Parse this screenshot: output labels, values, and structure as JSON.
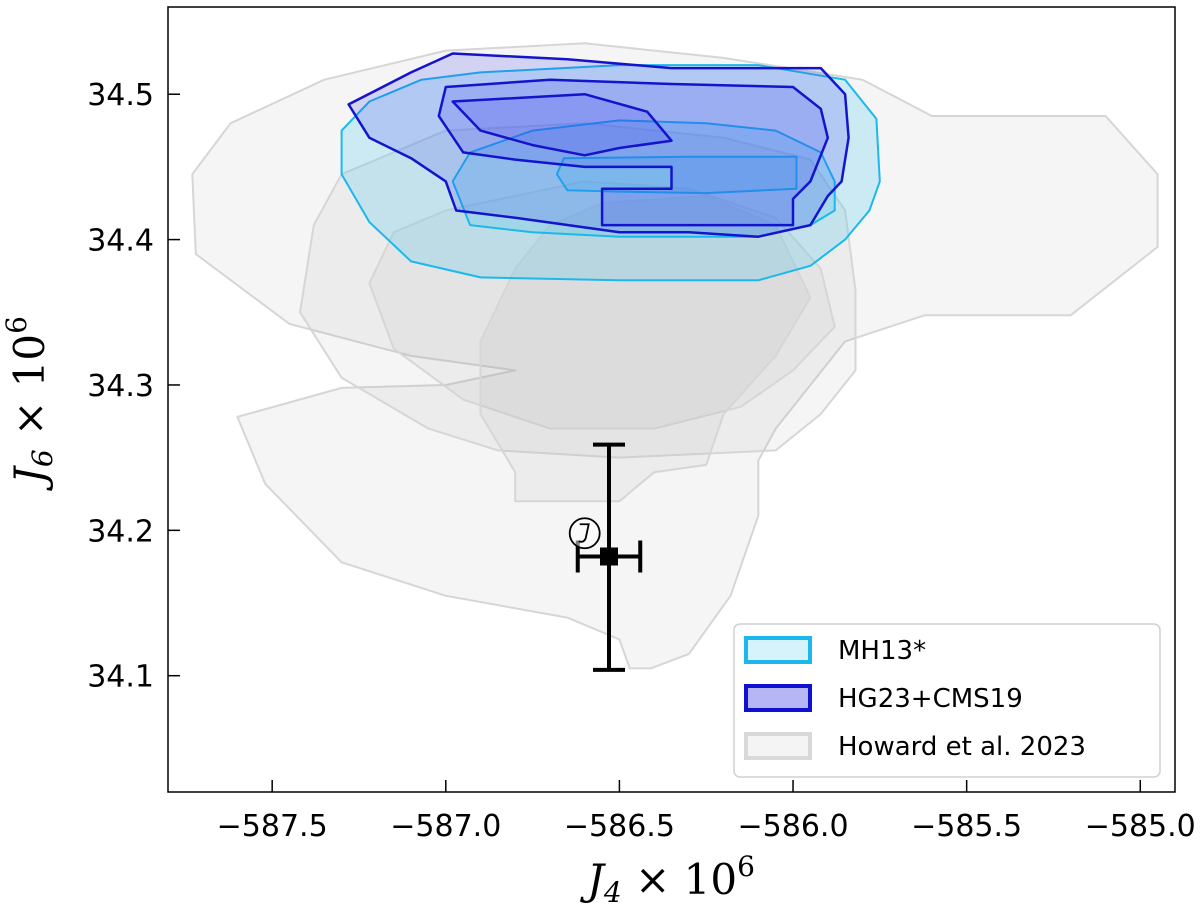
{
  "chart_data": {
    "type": "contour",
    "xlabel": {
      "main": "J",
      "sub": "4",
      "rest": " × 10",
      "sup": "6"
    },
    "ylabel": {
      "main": "J",
      "sub": "6",
      "rest": " × 10",
      "sup": "6"
    },
    "xlim": [
      -587.8,
      -584.9
    ],
    "ylim": [
      34.02,
      34.56
    ],
    "x_ticks": [
      -587.5,
      -587.0,
      -586.5,
      -586.0,
      -585.5,
      -585.0
    ],
    "x_tick_labels": [
      "−587.5",
      "−587.0",
      "−586.5",
      "−586.0",
      "−585.5",
      "−585.0"
    ],
    "y_ticks": [
      34.1,
      34.2,
      34.3,
      34.4,
      34.5
    ],
    "y_tick_labels": [
      "34.1",
      "34.2",
      "34.3",
      "34.4",
      "34.5"
    ],
    "legend": {
      "placement": "lower-right",
      "entries": [
        {
          "label": "MH13*",
          "edge": "#1cb8ec",
          "fill": "#d6f3fc"
        },
        {
          "label": "HG23+CMS19",
          "edge": "#1010d0",
          "fill": "#b6b6f4"
        },
        {
          "label": "Howard et al. 2023",
          "edge": "#d9d9d9",
          "fill": "#f4f4f4"
        }
      ]
    },
    "series": [
      {
        "name": "Howard et al. 2023",
        "style": {
          "edge": "#d6d6d6",
          "fill": "#9a9a9a",
          "fill_opacity": 0.1,
          "stroke_width": 2
        },
        "contours": [
          [
            [
              -587.35,
              34.51
            ],
            [
              -587.0,
              34.53
            ],
            [
              -586.6,
              34.535
            ],
            [
              -586.2,
              34.525
            ],
            [
              -585.8,
              34.51
            ],
            [
              -585.6,
              34.485
            ],
            [
              -585.1,
              34.485
            ],
            [
              -584.95,
              34.445
            ],
            [
              -584.95,
              34.395
            ],
            [
              -585.2,
              34.348
            ],
            [
              -585.62,
              34.348
            ],
            [
              -585.85,
              34.33
            ],
            [
              -585.95,
              34.3
            ],
            [
              -586.05,
              34.27
            ],
            [
              -586.1,
              34.248
            ],
            [
              -586.1,
              34.21
            ],
            [
              -586.18,
              34.155
            ],
            [
              -586.3,
              34.115
            ],
            [
              -586.41,
              34.105
            ],
            [
              -586.47,
              34.105
            ],
            [
              -586.5,
              34.125
            ],
            [
              -586.65,
              34.14
            ],
            [
              -587.0,
              34.155
            ],
            [
              -587.3,
              34.178
            ],
            [
              -587.52,
              34.232
            ],
            [
              -587.6,
              34.278
            ],
            [
              -587.3,
              34.298
            ],
            [
              -587.0,
              34.3
            ],
            [
              -586.8,
              34.31
            ],
            [
              -587.1,
              34.32
            ],
            [
              -587.45,
              34.342
            ],
            [
              -587.72,
              34.39
            ],
            [
              -587.73,
              34.445
            ],
            [
              -587.62,
              34.48
            ]
          ],
          [
            [
              -587.3,
              34.445
            ],
            [
              -587.0,
              34.475
            ],
            [
              -586.6,
              34.48
            ],
            [
              -586.2,
              34.47
            ],
            [
              -585.95,
              34.455
            ],
            [
              -585.85,
              34.42
            ],
            [
              -585.82,
              34.365
            ],
            [
              -585.82,
              34.31
            ],
            [
              -585.92,
              34.28
            ],
            [
              -586.05,
              34.255
            ],
            [
              -586.5,
              34.25
            ],
            [
              -586.85,
              34.255
            ],
            [
              -587.05,
              34.27
            ],
            [
              -587.3,
              34.305
            ],
            [
              -587.42,
              34.35
            ],
            [
              -587.38,
              34.41
            ]
          ],
          [
            [
              -587.0,
              34.42
            ],
            [
              -586.6,
              34.44
            ],
            [
              -586.3,
              34.435
            ],
            [
              -586.05,
              34.415
            ],
            [
              -585.92,
              34.38
            ],
            [
              -585.88,
              34.34
            ],
            [
              -586.0,
              34.31
            ],
            [
              -586.15,
              34.285
            ],
            [
              -586.4,
              34.27
            ],
            [
              -586.7,
              34.27
            ],
            [
              -586.95,
              34.29
            ],
            [
              -587.15,
              34.325
            ],
            [
              -587.22,
              34.37
            ],
            [
              -587.15,
              34.405
            ]
          ],
          [
            [
              -586.55,
              34.425
            ],
            [
              -586.25,
              34.43
            ],
            [
              -586.05,
              34.41
            ],
            [
              -585.95,
              34.36
            ],
            [
              -586.05,
              34.32
            ],
            [
              -586.2,
              34.28
            ],
            [
              -586.25,
              34.245
            ],
            [
              -586.4,
              34.24
            ],
            [
              -586.5,
              34.22
            ],
            [
              -586.8,
              34.22
            ],
            [
              -586.8,
              34.24
            ],
            [
              -586.9,
              34.28
            ],
            [
              -586.9,
              34.33
            ],
            [
              -586.8,
              34.38
            ],
            [
              -586.7,
              34.41
            ]
          ]
        ]
      },
      {
        "name": "MH13*",
        "style": {
          "edge": "#1cb8ec",
          "fill": "#28c0f2",
          "fill_opacity": 0.2,
          "stroke_width": 2
        },
        "contours": [
          [
            [
              -587.07,
              34.51
            ],
            [
              -586.9,
              34.515
            ],
            [
              -586.5,
              34.52
            ],
            [
              -586.1,
              34.52
            ],
            [
              -585.85,
              34.51
            ],
            [
              -585.76,
              34.483
            ],
            [
              -585.75,
              34.44
            ],
            [
              -585.78,
              34.42
            ],
            [
              -585.85,
              34.4
            ],
            [
              -585.95,
              34.382
            ],
            [
              -586.1,
              34.372
            ],
            [
              -586.5,
              34.372
            ],
            [
              -586.9,
              34.374
            ],
            [
              -587.1,
              34.385
            ],
            [
              -587.22,
              34.412
            ],
            [
              -587.3,
              34.445
            ],
            [
              -587.3,
              34.475
            ],
            [
              -587.22,
              34.495
            ]
          ],
          [
            [
              -586.75,
              34.475
            ],
            [
              -586.5,
              34.482
            ],
            [
              -586.25,
              34.48
            ],
            [
              -586.05,
              34.475
            ],
            [
              -585.92,
              34.46
            ],
            [
              -585.88,
              34.44
            ],
            [
              -585.88,
              34.42
            ],
            [
              -585.95,
              34.41
            ],
            [
              -586.1,
              34.402
            ],
            [
              -586.5,
              34.402
            ],
            [
              -586.75,
              34.405
            ],
            [
              -586.93,
              34.41
            ],
            [
              -586.98,
              34.44
            ],
            [
              -586.93,
              34.46
            ]
          ],
          [
            [
              -586.66,
              34.456
            ],
            [
              -586.3,
              34.457
            ],
            [
              -585.99,
              34.457
            ],
            [
              -585.99,
              34.435
            ],
            [
              -586.25,
              34.432
            ],
            [
              -586.5,
              34.433
            ],
            [
              -586.65,
              34.434
            ],
            [
              -586.68,
              34.445
            ]
          ]
        ]
      },
      {
        "name": "HG23+CMS19",
        "style": {
          "edge": "#1414cc",
          "fill": "#3a3aee",
          "fill_opacity": 0.18,
          "stroke_width": 2.5
        },
        "contours": [
          [
            [
              -587.1,
              34.515
            ],
            [
              -586.98,
              34.528
            ],
            [
              -586.65,
              34.524
            ],
            [
              -586.35,
              34.518
            ],
            [
              -586.1,
              34.518
            ],
            [
              -585.92,
              34.518
            ],
            [
              -585.85,
              34.5
            ],
            [
              -585.84,
              34.47
            ],
            [
              -585.86,
              34.44
            ],
            [
              -585.9,
              34.43
            ],
            [
              -585.95,
              34.41
            ],
            [
              -586.1,
              34.402
            ],
            [
              -586.3,
              34.405
            ],
            [
              -586.5,
              34.405
            ],
            [
              -586.8,
              34.415
            ],
            [
              -586.97,
              34.42
            ],
            [
              -587.0,
              34.44
            ],
            [
              -587.1,
              34.456
            ],
            [
              -587.22,
              34.47
            ],
            [
              -587.28,
              34.493
            ]
          ],
          [
            [
              -587.0,
              34.505
            ],
            [
              -586.7,
              34.51
            ],
            [
              -586.35,
              34.507
            ],
            [
              -586.0,
              34.505
            ],
            [
              -585.92,
              34.49
            ],
            [
              -585.9,
              34.47
            ],
            [
              -585.95,
              34.44
            ],
            [
              -586.0,
              34.428
            ],
            [
              -586.0,
              34.41
            ],
            [
              -586.25,
              34.41
            ],
            [
              -586.55,
              34.41
            ],
            [
              -586.55,
              34.435
            ],
            [
              -586.35,
              34.435
            ],
            [
              -586.35,
              34.45
            ],
            [
              -586.6,
              34.45
            ],
            [
              -586.8,
              34.455
            ],
            [
              -586.95,
              34.46
            ],
            [
              -587.02,
              34.485
            ]
          ],
          [
            [
              -586.98,
              34.495
            ],
            [
              -586.6,
              34.5
            ],
            [
              -586.42,
              34.488
            ],
            [
              -586.35,
              34.468
            ],
            [
              -586.5,
              34.463
            ],
            [
              -586.6,
              34.458
            ],
            [
              -586.75,
              34.465
            ],
            [
              -586.9,
              34.475
            ]
          ]
        ]
      }
    ],
    "point": {
      "x": -586.53,
      "y": 34.182,
      "x_err": [
        0.09,
        0.09
      ],
      "y_err": [
        0.078,
        0.077
      ],
      "marker": "square",
      "color": "#000000"
    },
    "annotation_symbol": {
      "x": -586.6,
      "y": 34.198,
      "symbol": "jupiter"
    }
  }
}
